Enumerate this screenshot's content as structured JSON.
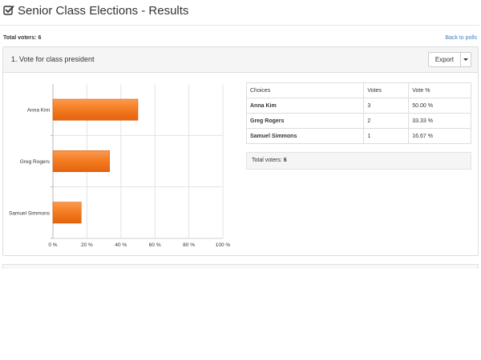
{
  "page": {
    "title": "Senior Class Elections - Results",
    "title_icon": "check-square-icon",
    "total_voters_label": "Total voters:",
    "total_voters_value": "6",
    "back_link": "Back to polls"
  },
  "question": {
    "title": "1.  Vote for class president",
    "export_label": "Export"
  },
  "table": {
    "headers": [
      "Choices",
      "Votes",
      "Vote %"
    ],
    "rows": [
      {
        "choice": "Anna Kim",
        "votes": "3",
        "pct": "50.00 %"
      },
      {
        "choice": "Greg Rogers",
        "votes": "2",
        "pct": "33.33 %"
      },
      {
        "choice": "Samuel Simmons",
        "votes": "1",
        "pct": "16.67 %"
      }
    ],
    "footer_label": "Total voters:",
    "footer_value": "6"
  },
  "chart_data": {
    "type": "bar",
    "orientation": "horizontal",
    "categories": [
      "Anna Kim",
      "Greg Rogers",
      "Samuel Simmons"
    ],
    "values": [
      50,
      33.33,
      16.67
    ],
    "xlim": [
      0,
      100
    ],
    "xticks": [
      0,
      20,
      40,
      60,
      80,
      100
    ],
    "xtick_labels": [
      "0 %",
      "20 %",
      "40 %",
      "60 %",
      "80 %",
      "100 %"
    ],
    "grid": true,
    "bar_color": "#f47a20"
  },
  "colors": {
    "accent_link": "#3b7dc4",
    "bar": "#f47a20"
  }
}
